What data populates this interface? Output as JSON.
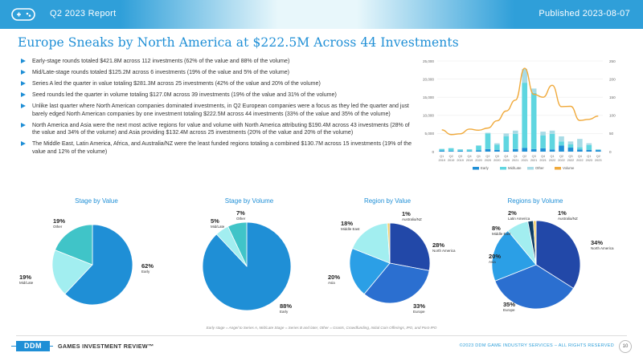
{
  "header": {
    "report": "Q2 2023 Report",
    "published": "Published 2023-08-07",
    "colors": {
      "band": "#5bc8d6",
      "tab": "#2f9fd9"
    }
  },
  "title": "Europe Sneaks by North America at $222.5M Across 44 Investments",
  "bullets": [
    "Early-stage rounds totaled $421.8M across 112 investments (62% of the value and 88% of the volume)",
    "Mid/Late-stage rounds totaled $125.2M across 6 investments (19% of the value and 5% of the volume)",
    "Series A led the quarter in value totaling $281.3M across 25 investments (42% of the value and 20% of the volume)",
    "Seed rounds led the quarter in volume totaling $127.0M across 39 investments (19% of the value and 31% of the volume)",
    "Unlike last quarter where North American companies dominated investments, in Q2 European companies were a focus as they led the quarter and just barely edged North American companies by one investment totaling $222.5M across 44 investments (33% of the value and 35% of the volume)",
    "North America and Asia were the next most active regions for value and volume with North America attributing $190.4M across 43 investments (28% of the value and 34% of the volume) and Asia providing $132.4M across 25 investments (20% of the value and 20% of the volume)",
    "The Middle East, Latin America, Africa, and Australia/NZ were the least funded regions totaling a combined $130.7M across 15 investments (19% of the value and 12% of the volume)"
  ],
  "chart_data": [
    {
      "type": "bar",
      "subtype": "stacked-bar-with-line",
      "categories": [
        "Q1 2019",
        "Q2 2019",
        "Q3 2019",
        "Q4 2019",
        "Q1 2020",
        "Q2 2020",
        "Q3 2020",
        "Q4 2020",
        "Q1 2021",
        "Q2 2021",
        "Q3 2021",
        "Q4 2021",
        "Q1 2022",
        "Q2 2022",
        "Q3 2022",
        "Q4 2022",
        "Q1 2023",
        "Q2 2023"
      ],
      "category_lines": [
        [
          "Q1",
          "2019"
        ],
        [
          "Q2",
          "2019"
        ],
        [
          "Q3",
          "2019"
        ],
        [
          "Q4",
          "2019"
        ],
        [
          "Q1",
          "2020"
        ],
        [
          "Q2",
          "2020"
        ],
        [
          "Q3",
          "2020"
        ],
        [
          "Q4",
          "2020"
        ],
        [
          "Q1",
          "2021"
        ],
        [
          "Q2",
          "2021"
        ],
        [
          "Q3",
          "2021"
        ],
        [
          "Q4",
          "2021"
        ],
        [
          "Q1",
          "2022"
        ],
        [
          "Q2",
          "2022"
        ],
        [
          "Q3",
          "2022"
        ],
        [
          "Q4",
          "2022"
        ],
        [
          "Q1",
          "2023"
        ],
        [
          "Q2",
          "2023"
        ]
      ],
      "series": [
        {
          "name": "Early",
          "color": "#1f8fd6",
          "values": [
            300,
            200,
            250,
            150,
            350,
            700,
            500,
            300,
            700,
            1000,
            700,
            900,
            600,
            1700,
            1100,
            600,
            500,
            420
          ]
        },
        {
          "name": "Mid/Late",
          "color": "#5fd6e0",
          "values": [
            400,
            700,
            300,
            400,
            1200,
            4300,
            1400,
            3900,
            4200,
            18000,
            15500,
            3600,
            4300,
            1100,
            900,
            600,
            1300,
            100
          ]
        },
        {
          "name": "Other",
          "color": "#a8dbe6",
          "values": [
            100,
            100,
            100,
            100,
            200,
            200,
            400,
            800,
            900,
            3800,
            1200,
            1000,
            900,
            1400,
            800,
            2300,
            500,
            150
          ]
        }
      ],
      "line": {
        "name": "Volume",
        "color": "#f0a93a",
        "values": [
          60,
          47,
          49,
          62,
          59,
          65,
          85,
          112,
          142,
          230,
          158,
          150,
          183,
          124,
          125,
          86,
          89,
          98
        ]
      },
      "legend": [
        "Early",
        "Mid/Late",
        "Other",
        "Volume"
      ],
      "y_left": {
        "ticks": [
          "0",
          "5,000",
          "10,000",
          "15,000",
          "20,000",
          "25,000"
        ],
        "min": 0,
        "max": 25000
      },
      "y_right": {
        "ticks": [
          "0",
          "50",
          "100",
          "150",
          "200",
          "250"
        ],
        "min": 0,
        "max": 250
      }
    },
    {
      "type": "pie",
      "title": "Stage by Value",
      "slices": [
        {
          "label": "Early",
          "value": 62,
          "text": "62%",
          "color": "#1f8fd6"
        },
        {
          "label": "Mid/Late",
          "value": 19,
          "text": "19%",
          "color": "#a2eef0"
        },
        {
          "label": "Other",
          "value": 19,
          "text": "19%",
          "color": "#40c4c8"
        }
      ]
    },
    {
      "type": "pie",
      "title": "Stage by Volume",
      "slices": [
        {
          "label": "Early",
          "value": 88,
          "text": "88%",
          "color": "#1f8fd6"
        },
        {
          "label": "Mid/Late",
          "value": 5,
          "text": "5%",
          "color": "#a2eef0"
        },
        {
          "label": "Other",
          "value": 7,
          "text": "7%",
          "color": "#40c4c8"
        }
      ]
    },
    {
      "type": "pie",
      "title": "Region by Value",
      "slices": [
        {
          "label": "North America",
          "value": 28,
          "text": "28%",
          "color": "#2248a8"
        },
        {
          "label": "Europe",
          "value": 33,
          "text": "33%",
          "color": "#2b6fd0"
        },
        {
          "label": "Asia",
          "value": 20,
          "text": "20%",
          "color": "#2b9fe6"
        },
        {
          "label": "Middle East",
          "value": 18,
          "text": "18%",
          "color": "#a2eef0"
        },
        {
          "label": "Australia/NZ",
          "value": 1,
          "text": "1%",
          "color": "#f2cf6b"
        }
      ]
    },
    {
      "type": "pie",
      "title": "Regions by Volume",
      "slices": [
        {
          "label": "North America",
          "value": 34,
          "text": "34%",
          "color": "#2248a8"
        },
        {
          "label": "Europe",
          "value": 35,
          "text": "35%",
          "color": "#2b6fd0"
        },
        {
          "label": "Asia",
          "value": 20,
          "text": "20%",
          "color": "#2b9fe6"
        },
        {
          "label": "Middle East",
          "value": 8,
          "text": "8%",
          "color": "#a2eef0"
        },
        {
          "label": "Latin America",
          "value": 2,
          "text": "2%",
          "color": "#0e3d66"
        },
        {
          "label": "Australia/NZ",
          "value": 1,
          "text": "1%",
          "color": "#f2cf6b"
        }
      ]
    }
  ],
  "footnote": "Early stage = Angel to Series A, Mid/Late Stage = Series B and later, Other = Grants, Crowdfunding, Initial Coin Offerings, IPO, and Post-IPO",
  "footer": {
    "logo": "DDM",
    "brand": "GAMES INVESTMENT REVIEW™",
    "copyright": "©2023 DDM GAME INDUSTRY SERVICES – ALL RIGHTS RESERVED",
    "page": "10"
  }
}
